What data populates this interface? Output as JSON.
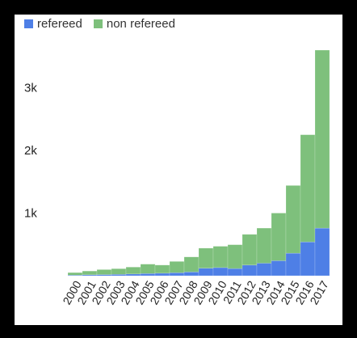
{
  "colors": {
    "refereed": "#4e7fe6",
    "non_refereed": "#7ec07c"
  },
  "chart_data": {
    "type": "bar",
    "stacked": true,
    "title": "",
    "xlabel": "",
    "ylabel": "",
    "categories": [
      "2000",
      "2001",
      "2002",
      "2003",
      "2004",
      "2005",
      "2006",
      "2007",
      "2008",
      "2009",
      "2010",
      "2011",
      "2012",
      "2013",
      "2014",
      "2015",
      "2016",
      "2017"
    ],
    "series": [
      {
        "name": "refereed",
        "values": [
          10,
          15,
          18,
          22,
          28,
          35,
          40,
          48,
          60,
          120,
          130,
          115,
          170,
          200,
          240,
          360,
          540,
          760
        ]
      },
      {
        "name": "non refereed",
        "values": [
          40,
          60,
          80,
          90,
          110,
          150,
          130,
          180,
          240,
          320,
          340,
          380,
          490,
          560,
          760,
          1080,
          1710,
          2840
        ]
      }
    ],
    "yticks": [
      1000,
      2000,
      3000
    ],
    "ytick_labels": [
      "1k",
      "2k",
      "3k"
    ],
    "ylim": [
      0,
      3600
    ],
    "grid": false,
    "legend": "top-left"
  }
}
